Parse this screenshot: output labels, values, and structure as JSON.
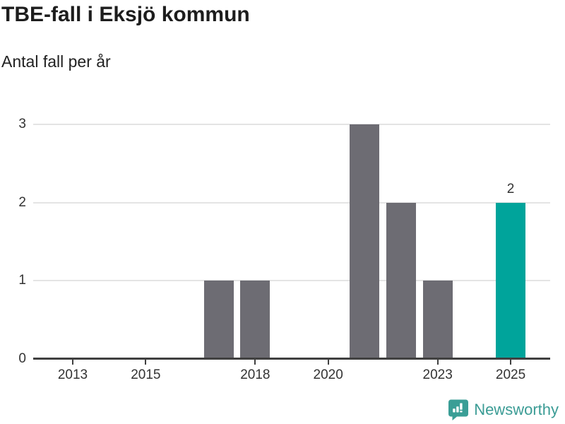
{
  "header": {
    "title": "TBE-fall i Eksjö kommun",
    "subtitle": "Antal fall per år"
  },
  "chart_data": {
    "type": "bar",
    "title": "TBE-fall i Eksjö kommun",
    "subtitle": "Antal fall per år",
    "categories": [
      "2013",
      "2014",
      "2015",
      "2016",
      "2017",
      "2018",
      "2019",
      "2020",
      "2021",
      "2022",
      "2023",
      "2024",
      "2025"
    ],
    "values": [
      0,
      0,
      0,
      0,
      1,
      1,
      0,
      0,
      3,
      2,
      1,
      0,
      2
    ],
    "ylim": [
      0,
      3
    ],
    "y_ticks": [
      0,
      1,
      2,
      3
    ],
    "x_tick_labels": [
      "2013",
      "2015",
      "2018",
      "2020",
      "2023",
      "2025"
    ],
    "grid": "horizontal",
    "legend": "none",
    "bar_color": "#6d6c73",
    "highlight_color": "#00a49b",
    "highlight_category": "2025",
    "value_labels": [
      {
        "category": "2025",
        "text": "2"
      }
    ]
  },
  "branding": {
    "logo_text": "Newsworthy",
    "logo_color": "#3b9c95",
    "logo_icon": "speech-bubble-bar-chart-icon"
  },
  "colors": {
    "title_text": "#1d1d1d",
    "axis_text": "#333333",
    "axis_line": "#404040",
    "gridline": "#e4e4e4",
    "background": "#ffffff"
  }
}
